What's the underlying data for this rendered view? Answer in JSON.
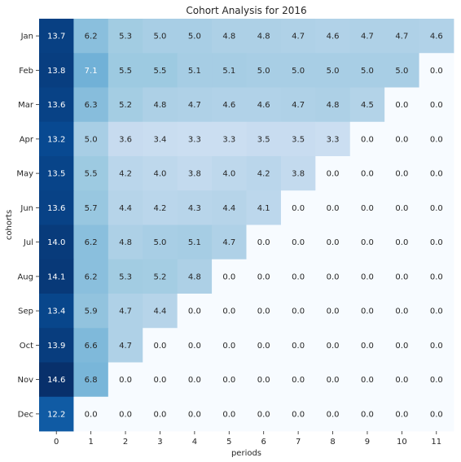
{
  "chart_data": {
    "type": "heatmap",
    "title": "Cohort Analysis for 2016",
    "xlabel": "periods",
    "ylabel": "cohorts",
    "x_categories": [
      "0",
      "1",
      "2",
      "3",
      "4",
      "5",
      "6",
      "7",
      "8",
      "9",
      "10",
      "11"
    ],
    "y_categories": [
      "Jan",
      "Feb",
      "Mar",
      "Apr",
      "May",
      "Jun",
      "Jul",
      "Aug",
      "Sep",
      "Oct",
      "Nov",
      "Dec"
    ],
    "values": [
      [
        13.7,
        6.2,
        5.3,
        5.0,
        5.0,
        4.8,
        4.8,
        4.7,
        4.6,
        4.7,
        4.7,
        4.6
      ],
      [
        13.8,
        7.1,
        5.5,
        5.5,
        5.1,
        5.1,
        5.0,
        5.0,
        5.0,
        5.0,
        5.0,
        0.0
      ],
      [
        13.6,
        6.3,
        5.2,
        4.8,
        4.7,
        4.6,
        4.6,
        4.7,
        4.8,
        4.5,
        0.0,
        0.0
      ],
      [
        13.2,
        5.0,
        3.6,
        3.4,
        3.3,
        3.3,
        3.5,
        3.5,
        3.3,
        0.0,
        0.0,
        0.0
      ],
      [
        13.5,
        5.5,
        4.2,
        4.0,
        3.8,
        4.0,
        4.2,
        3.8,
        0.0,
        0.0,
        0.0,
        0.0
      ],
      [
        13.6,
        5.7,
        4.4,
        4.2,
        4.3,
        4.4,
        4.1,
        0.0,
        0.0,
        0.0,
        0.0,
        0.0
      ],
      [
        14.0,
        6.2,
        4.8,
        5.0,
        5.1,
        4.7,
        0.0,
        0.0,
        0.0,
        0.0,
        0.0,
        0.0
      ],
      [
        14.1,
        6.2,
        5.3,
        5.2,
        4.8,
        0.0,
        0.0,
        0.0,
        0.0,
        0.0,
        0.0,
        0.0
      ],
      [
        13.4,
        5.9,
        4.7,
        4.4,
        0.0,
        0.0,
        0.0,
        0.0,
        0.0,
        0.0,
        0.0,
        0.0
      ],
      [
        13.9,
        6.6,
        4.7,
        0.0,
        0.0,
        0.0,
        0.0,
        0.0,
        0.0,
        0.0,
        0.0,
        0.0
      ],
      [
        14.6,
        6.8,
        0.0,
        0.0,
        0.0,
        0.0,
        0.0,
        0.0,
        0.0,
        0.0,
        0.0,
        0.0
      ],
      [
        12.2,
        0.0,
        0.0,
        0.0,
        0.0,
        0.0,
        0.0,
        0.0,
        0.0,
        0.0,
        0.0,
        0.0
      ]
    ],
    "value_format": "0.0",
    "colormap": "Blues",
    "color_range": [
      0.0,
      14.6
    ],
    "colorbar": false,
    "grid": false,
    "colors": {
      "low": "#f7fbff",
      "high": "#08306b",
      "label_dark": "#262626",
      "label_light": "#ffffff"
    }
  }
}
